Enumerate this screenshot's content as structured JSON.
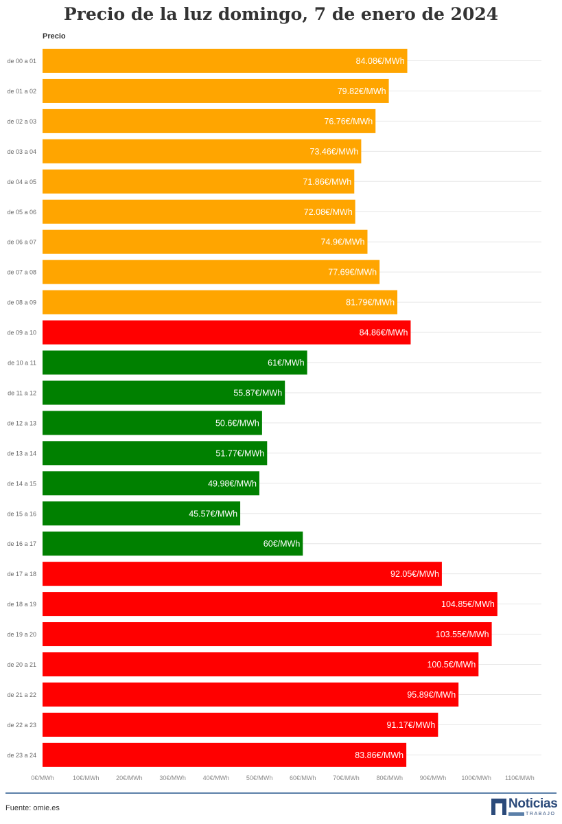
{
  "title": "Precio de la luz domingo, 7 de enero de 2024",
  "source": "Fuente: omie.es",
  "logo": {
    "word": "Noticias",
    "sub": "TRABAJO"
  },
  "chart_data": {
    "type": "bar",
    "orientation": "horizontal",
    "measure_label": "Precio",
    "unit": "€/MWh",
    "categories": [
      "de 00 a 01",
      "de 01 a 02",
      "de 02 a 03",
      "de 03 a 04",
      "de 04 a 05",
      "de 05 a 06",
      "de 06 a 07",
      "de 07 a 08",
      "de 08 a 09",
      "de 09 a 10",
      "de 10 a 11",
      "de 11 a 12",
      "de 12 a 13",
      "de 13 a 14",
      "de 14 a 15",
      "de 15 a 16",
      "de 16 a 17",
      "de 17 a 18",
      "de 18 a 19",
      "de 19 a 20",
      "de 20 a 21",
      "de 21 a 22",
      "de 22 a 23",
      "de 23 a 24"
    ],
    "values": [
      84.08,
      79.82,
      76.76,
      73.46,
      71.86,
      72.08,
      74.9,
      77.69,
      81.79,
      84.86,
      61,
      55.87,
      50.6,
      51.77,
      49.98,
      45.57,
      60,
      92.05,
      104.85,
      103.55,
      100.5,
      95.89,
      91.17,
      83.86
    ],
    "value_labels": [
      "84.08€/MWh",
      "79.82€/MWh",
      "76.76€/MWh",
      "73.46€/MWh",
      "71.86€/MWh",
      "72.08€/MWh",
      "74.9€/MWh",
      "77.69€/MWh",
      "81.79€/MWh",
      "84.86€/MWh",
      "61€/MWh",
      "55.87€/MWh",
      "50.6€/MWh",
      "51.77€/MWh",
      "49.98€/MWh",
      "45.57€/MWh",
      "60€/MWh",
      "92.05€/MWh",
      "104.85€/MWh",
      "103.55€/MWh",
      "100.5€/MWh",
      "95.89€/MWh",
      "91.17€/MWh",
      "83.86€/MWh"
    ],
    "bar_colors": [
      "orange",
      "orange",
      "orange",
      "orange",
      "orange",
      "orange",
      "orange",
      "orange",
      "orange",
      "red",
      "green",
      "green",
      "green",
      "green",
      "green",
      "green",
      "green",
      "red",
      "red",
      "red",
      "red",
      "red",
      "red",
      "red"
    ],
    "colors": {
      "orange": "#FFA500",
      "red": "#FF0000",
      "green": "#008000"
    },
    "xlim": [
      0,
      115
    ],
    "xticks": [
      0,
      10,
      20,
      30,
      40,
      50,
      60,
      70,
      80,
      90,
      100,
      110
    ],
    "xtick_labels": [
      "0€/MWh",
      "10€/MWh",
      "20€/MWh",
      "30€/MWh",
      "40€/MWh",
      "50€/MWh",
      "60€/MWh",
      "70€/MWh",
      "80€/MWh",
      "90€/MWh",
      "100€/MWh",
      "110€/MWh"
    ],
    "grid": true
  }
}
